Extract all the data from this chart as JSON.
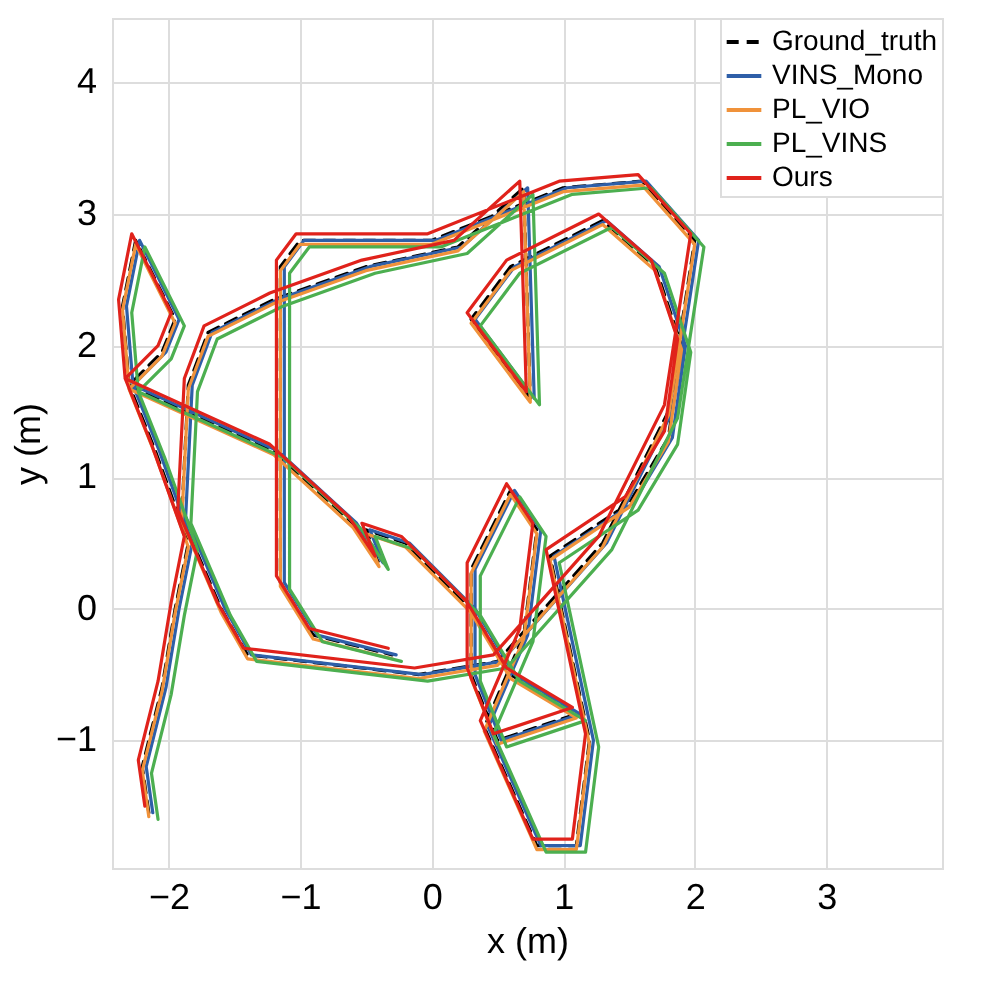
{
  "chart_data": {
    "type": "line",
    "xlabel": "x (m)",
    "ylabel": "y (m)",
    "xlim": [
      -2.43,
      3.88
    ],
    "ylim": [
      -1.97,
      4.49
    ],
    "xticks": [
      -2,
      -1,
      0,
      1,
      2,
      3
    ],
    "yticks": [
      -1,
      0,
      1,
      2,
      3,
      4
    ],
    "grid": true,
    "legend": "top right",
    "marker": "none",
    "series": [
      {
        "name": "Ground_truth",
        "color": "#000000",
        "line_style": "dashed",
        "x": [
          -2.15,
          -2.2,
          -2.05,
          -1.95,
          -1.85,
          -2.1,
          -2.3,
          -2.35,
          -2.25,
          -1.95,
          -2.05,
          -2.3,
          -1.2,
          -0.6,
          -0.4,
          -0.5,
          -0.2,
          0.3,
          0.6,
          1.1,
          0.5,
          0.3,
          0.3,
          0.6,
          0.8,
          0.7,
          0.4,
          0.8,
          1.1,
          1.2,
          0.9,
          1.5,
          1.8,
          1.9,
          1.7,
          1.3,
          0.6,
          0.3,
          0.75,
          0.7,
          0.2,
          -0.5,
          -1.2,
          -1.7,
          -1.85,
          -1.9,
          -1.6,
          -1.4,
          -0.1,
          0.5,
          1.3,
          1.8,
          2,
          1.6,
          1,
          0,
          -1,
          -1.15,
          -1.15,
          -0.9,
          -0.3
        ],
        "values": [
          -1.55,
          -1.2,
          -0.6,
          0,
          0.5,
          1.2,
          1.7,
          2.3,
          2.8,
          2.2,
          1.95,
          1.7,
          1.2,
          0.65,
          0.35,
          0.6,
          0.5,
          0,
          -0.5,
          -0.8,
          -1,
          -0.5,
          0.3,
          0.9,
          0.6,
          -0.2,
          -0.9,
          -1.8,
          -1.8,
          -1,
          0.4,
          0.8,
          1.3,
          2,
          2.6,
          2.95,
          2.6,
          2.2,
          1.6,
          3.2,
          2.75,
          2.6,
          2.35,
          2.1,
          1.7,
          0.7,
          0,
          -0.35,
          -0.5,
          -0.4,
          0.5,
          1.5,
          2.8,
          3.25,
          3.2,
          2.8,
          2.8,
          2.6,
          0.2,
          -0.2,
          -0.35
        ]
      },
      {
        "name": "VINS_Mono",
        "color": "#2e5fa8",
        "line_style": "solid",
        "x": [
          -2.12,
          -2.17,
          -2.02,
          -1.92,
          -1.82,
          -2.07,
          -2.27,
          -2.32,
          -2.22,
          -1.92,
          -2.02,
          -2.27,
          -1.17,
          -0.57,
          -0.37,
          -0.47,
          -0.17,
          0.33,
          0.63,
          1.13,
          0.53,
          0.33,
          0.33,
          0.63,
          0.83,
          0.73,
          0.43,
          0.83,
          1.13,
          1.23,
          0.93,
          1.53,
          1.83,
          1.93,
          1.73,
          1.33,
          0.63,
          0.33,
          0.78,
          0.73,
          0.23,
          -0.47,
          -1.17,
          -1.67,
          -1.82,
          -1.87,
          -1.57,
          -1.37,
          -0.07,
          0.53,
          1.33,
          1.83,
          2.03,
          1.63,
          1.03,
          0.03,
          -0.97,
          -1.12,
          -1.12,
          -0.87,
          -0.27
        ],
        "values": [
          -1.55,
          -1.2,
          -0.6,
          0,
          0.5,
          1.2,
          1.7,
          2.3,
          2.8,
          2.2,
          1.95,
          1.7,
          1.2,
          0.65,
          0.35,
          0.6,
          0.5,
          0,
          -0.5,
          -0.8,
          -1,
          -0.5,
          0.3,
          0.9,
          0.6,
          -0.2,
          -0.9,
          -1.8,
          -1.8,
          -1,
          0.4,
          0.8,
          1.3,
          2,
          2.6,
          2.95,
          2.6,
          2.2,
          1.6,
          3.2,
          2.75,
          2.6,
          2.35,
          2.1,
          1.7,
          0.7,
          0,
          -0.35,
          -0.5,
          -0.4,
          0.5,
          1.5,
          2.8,
          3.25,
          3.2,
          2.8,
          2.8,
          2.6,
          0.2,
          -0.2,
          -0.35
        ]
      },
      {
        "name": "PL_VIO",
        "color": "#f0923a",
        "line_style": "solid",
        "x": [
          -2.15,
          -2.2,
          -2.05,
          -1.95,
          -1.85,
          -2.1,
          -2.3,
          -2.35,
          -2.25,
          -1.95,
          -2.05,
          -2.3,
          -1.2,
          -0.6,
          -0.4,
          -0.5,
          -0.2,
          0.3,
          0.6,
          1.1,
          0.5,
          0.3,
          0.3,
          0.6,
          0.8,
          0.7,
          0.4,
          0.8,
          1.1,
          1.2,
          0.9,
          1.5,
          1.8,
          1.9,
          1.7,
          1.3,
          0.6,
          0.3,
          0.75,
          0.7,
          0.2,
          -0.5,
          -1.2,
          -1.7,
          -1.85,
          -1.9,
          -1.6,
          -1.4,
          -0.1,
          0.5,
          1.3,
          1.8,
          2,
          1.6,
          1,
          0,
          -1,
          -1.15,
          -1.15,
          -0.9,
          -0.3
        ],
        "values": [
          -1.58,
          -1.23,
          -0.63,
          -0.03,
          0.47,
          1.17,
          1.67,
          2.27,
          2.77,
          2.17,
          1.92,
          1.67,
          1.17,
          0.62,
          0.32,
          0.57,
          0.47,
          -0.03,
          -0.53,
          -0.83,
          -1.03,
          -0.53,
          0.27,
          0.87,
          0.57,
          -0.23,
          -0.93,
          -1.83,
          -1.83,
          -1.03,
          0.37,
          0.77,
          1.27,
          1.97,
          2.57,
          2.92,
          2.57,
          2.17,
          1.57,
          3.17,
          2.72,
          2.57,
          2.32,
          2.07,
          1.67,
          0.67,
          -0.03,
          -0.38,
          -0.53,
          -0.43,
          0.47,
          1.47,
          2.77,
          3.22,
          3.17,
          2.77,
          2.77,
          2.57,
          0.17,
          -0.23,
          -0.38
        ]
      },
      {
        "name": "PL_VINS",
        "color": "#4caf50",
        "line_style": "solid",
        "x": [
          -2.08,
          -2.13,
          -1.98,
          -1.88,
          -1.78,
          -2.03,
          -2.23,
          -2.28,
          -2.18,
          -1.88,
          -1.98,
          -2.23,
          -1.13,
          -0.53,
          -0.33,
          -0.43,
          -0.13,
          0.37,
          0.67,
          1.17,
          0.57,
          0.37,
          0.37,
          0.67,
          0.87,
          0.77,
          0.47,
          0.87,
          1.17,
          1.27,
          0.97,
          1.57,
          1.87,
          1.97,
          1.77,
          1.37,
          0.67,
          0.37,
          0.82,
          0.77,
          0.27,
          -0.43,
          -1.13,
          -1.63,
          -1.78,
          -1.83,
          -1.53,
          -1.33,
          -0.03,
          0.57,
          1.37,
          1.87,
          2.07,
          1.67,
          1.07,
          0.07,
          -0.93,
          -1.08,
          -1.08,
          -0.83,
          -0.23
        ],
        "values": [
          -1.6,
          -1.25,
          -0.65,
          -0.05,
          0.45,
          1.15,
          1.65,
          2.25,
          2.75,
          2.15,
          1.9,
          1.65,
          1.15,
          0.6,
          0.3,
          0.55,
          0.45,
          -0.05,
          -0.55,
          -0.85,
          -1.05,
          -0.55,
          0.25,
          0.85,
          0.55,
          -0.25,
          -0.95,
          -1.85,
          -1.85,
          -1.05,
          0.35,
          0.75,
          1.25,
          1.95,
          2.55,
          2.9,
          2.55,
          2.15,
          1.55,
          3.15,
          2.7,
          2.55,
          2.3,
          2.05,
          1.65,
          0.65,
          -0.05,
          -0.4,
          -0.55,
          -0.45,
          0.45,
          1.45,
          2.75,
          3.2,
          3.15,
          2.75,
          2.75,
          2.55,
          0.15,
          -0.25,
          -0.4
        ]
      },
      {
        "name": "Ours",
        "color": "#e0221b",
        "line_style": "solid",
        "x": [
          -2.18,
          -2.23,
          -2.08,
          -1.98,
          -1.88,
          -2.13,
          -2.33,
          -2.38,
          -2.28,
          -1.98,
          -2.08,
          -2.33,
          -1.23,
          -0.63,
          -0.43,
          -0.53,
          -0.23,
          0.27,
          0.57,
          1.07,
          0.47,
          0.27,
          0.27,
          0.57,
          0.77,
          0.67,
          0.37,
          0.77,
          1.07,
          1.17,
          0.87,
          1.47,
          1.77,
          1.87,
          1.67,
          1.27,
          0.57,
          0.27,
          0.72,
          0.67,
          0.17,
          -0.53,
          -1.23,
          -1.73,
          -1.88,
          -1.93,
          -1.63,
          -1.43,
          -0.13,
          0.47,
          1.27,
          1.77,
          1.97,
          1.57,
          0.97,
          -0.03,
          -1.03,
          -1.18,
          -1.18,
          -0.93,
          -0.33
        ],
        "values": [
          -1.5,
          -1.15,
          -0.55,
          0.05,
          0.55,
          1.25,
          1.75,
          2.35,
          2.85,
          2.25,
          2,
          1.75,
          1.25,
          0.7,
          0.4,
          0.65,
          0.55,
          0.05,
          -0.45,
          -0.75,
          -0.95,
          -0.45,
          0.35,
          0.95,
          0.65,
          -0.15,
          -0.85,
          -1.75,
          -1.75,
          -0.95,
          0.45,
          0.85,
          1.35,
          2.05,
          2.65,
          3,
          2.65,
          2.25,
          1.65,
          3.25,
          2.8,
          2.65,
          2.4,
          2.15,
          1.75,
          0.75,
          0.05,
          -0.3,
          -0.45,
          -0.35,
          0.55,
          1.55,
          2.85,
          3.3,
          3.25,
          2.85,
          2.85,
          2.65,
          0.25,
          -0.15,
          -0.3
        ]
      }
    ]
  }
}
